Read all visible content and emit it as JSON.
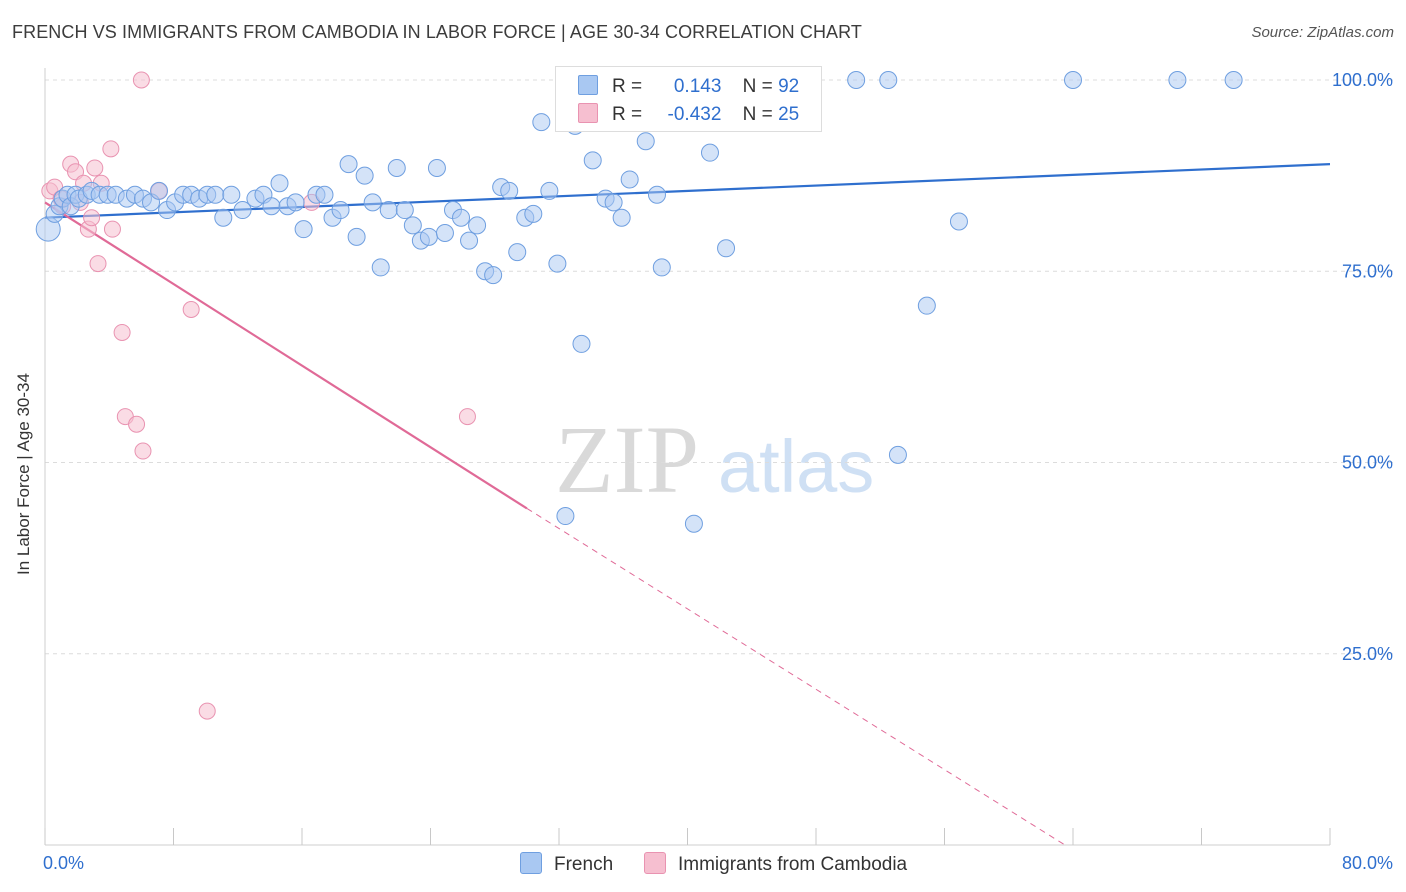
{
  "header": {
    "title": "FRENCH VS IMMIGRANTS FROM CAMBODIA IN LABOR FORCE | AGE 30-34 CORRELATION CHART",
    "source": "Source: ZipAtlas.com"
  },
  "watermark": {
    "zip": "ZIP",
    "atlas": "atlas"
  },
  "legend": {
    "french": {
      "r_label": "R =",
      "r_value": "0.143",
      "n_label": "N =",
      "n_value": "92"
    },
    "cambodia": {
      "r_label": "R =",
      "r_value": "-0.432",
      "n_label": "N =",
      "n_value": "25"
    }
  },
  "colors": {
    "french_fill": "#a9c8f2",
    "french_stroke": "#6f9fe0",
    "french_line": "#2f6fce",
    "cambodia_fill": "#f6bfd0",
    "cambodia_stroke": "#e993b1",
    "cambodia_line": "#e06a97",
    "axis_text": "#2f6fce",
    "grid": "#dcdcdc"
  },
  "chart_data": {
    "type": "scatter",
    "title": "FRENCH VS IMMIGRANTS FROM CAMBODIA IN LABOR FORCE | AGE 30-34 CORRELATION CHART",
    "xlabel": "",
    "ylabel": "In Labor Force | Age 30-34",
    "xlim": [
      0,
      80
    ],
    "ylim": [
      0,
      100
    ],
    "x_tick_labels": [
      "0.0%",
      "80.0%"
    ],
    "y_tick_labels": [
      "25.0%",
      "50.0%",
      "75.0%",
      "100.0%"
    ],
    "y_ticks": [
      25,
      50,
      75,
      100
    ],
    "grid": true,
    "legend_placement": "top-center",
    "series": [
      {
        "name": "French",
        "points": [
          [
            0.2,
            80.5
          ],
          [
            0.6,
            82.5
          ],
          [
            0.9,
            83.5
          ],
          [
            1.1,
            84.5
          ],
          [
            1.4,
            85.0
          ],
          [
            1.6,
            83.5
          ],
          [
            1.9,
            85.0
          ],
          [
            2.1,
            84.5
          ],
          [
            2.6,
            85.0
          ],
          [
            2.9,
            85.5
          ],
          [
            3.4,
            85.0
          ],
          [
            3.9,
            85.0
          ],
          [
            4.4,
            85.0
          ],
          [
            5.1,
            84.5
          ],
          [
            5.6,
            85.0
          ],
          [
            6.1,
            84.5
          ],
          [
            6.6,
            84.0
          ],
          [
            7.1,
            85.5
          ],
          [
            7.6,
            83.0
          ],
          [
            8.1,
            84.0
          ],
          [
            8.6,
            85.0
          ],
          [
            9.1,
            85.0
          ],
          [
            9.6,
            84.5
          ],
          [
            10.1,
            85.0
          ],
          [
            10.6,
            85.0
          ],
          [
            11.1,
            82.0
          ],
          [
            11.6,
            85.0
          ],
          [
            12.3,
            83.0
          ],
          [
            13.1,
            84.5
          ],
          [
            13.6,
            85.0
          ],
          [
            14.1,
            83.5
          ],
          [
            14.6,
            86.5
          ],
          [
            15.1,
            83.5
          ],
          [
            15.6,
            84.0
          ],
          [
            16.1,
            80.5
          ],
          [
            16.9,
            85.0
          ],
          [
            17.4,
            85.0
          ],
          [
            17.9,
            82.0
          ],
          [
            18.4,
            83.0
          ],
          [
            18.9,
            89.0
          ],
          [
            19.4,
            79.5
          ],
          [
            19.9,
            87.5
          ],
          [
            20.4,
            84.0
          ],
          [
            20.9,
            75.5
          ],
          [
            21.4,
            83.0
          ],
          [
            21.9,
            88.5
          ],
          [
            22.4,
            83.0
          ],
          [
            22.9,
            81.0
          ],
          [
            23.4,
            79.0
          ],
          [
            23.9,
            79.5
          ],
          [
            24.4,
            88.5
          ],
          [
            24.9,
            80.0
          ],
          [
            25.4,
            83.0
          ],
          [
            25.9,
            82.0
          ],
          [
            26.4,
            79.0
          ],
          [
            26.9,
            81.0
          ],
          [
            27.4,
            75.0
          ],
          [
            27.9,
            74.5
          ],
          [
            28.4,
            86.0
          ],
          [
            28.9,
            85.5
          ],
          [
            29.4,
            77.5
          ],
          [
            29.9,
            82.0
          ],
          [
            30.4,
            82.5
          ],
          [
            30.9,
            94.5
          ],
          [
            31.4,
            85.5
          ],
          [
            31.9,
            76.0
          ],
          [
            32.4,
            43.0
          ],
          [
            33.0,
            94.0
          ],
          [
            33.4,
            65.5
          ],
          [
            34.1,
            89.5
          ],
          [
            34.9,
            84.5
          ],
          [
            35.4,
            84.0
          ],
          [
            35.9,
            82.0
          ],
          [
            36.4,
            87.0
          ],
          [
            37.4,
            92.0
          ],
          [
            38.1,
            85.0
          ],
          [
            38.4,
            75.5
          ],
          [
            40.4,
            42.0
          ],
          [
            41.4,
            90.5
          ],
          [
            42.4,
            78.0
          ],
          [
            53.1,
            51.0
          ],
          [
            54.9,
            70.5
          ],
          [
            56.9,
            81.5
          ],
          [
            37.0,
            100.0
          ],
          [
            45.0,
            100.0
          ],
          [
            50.5,
            100.0
          ],
          [
            52.5,
            100.0
          ],
          [
            64.0,
            100.0
          ],
          [
            70.5,
            100.0
          ],
          [
            74.0,
            100.0
          ],
          [
            35.1,
            100.0
          ],
          [
            37.9,
            100.0
          ]
        ]
      },
      {
        "name": "Immigrants from Cambodia",
        "points": [
          [
            0.3,
            85.5
          ],
          [
            0.6,
            86.0
          ],
          [
            1.1,
            83.5
          ],
          [
            1.6,
            89.0
          ],
          [
            1.9,
            88.0
          ],
          [
            2.2,
            84.0
          ],
          [
            2.4,
            86.5
          ],
          [
            2.7,
            80.5
          ],
          [
            2.9,
            82.0
          ],
          [
            3.1,
            88.5
          ],
          [
            3.5,
            86.5
          ],
          [
            4.1,
            91.0
          ],
          [
            3.3,
            76.0
          ],
          [
            4.2,
            80.5
          ],
          [
            4.8,
            67.0
          ],
          [
            5.0,
            56.0
          ],
          [
            5.7,
            55.0
          ],
          [
            6.1,
            51.5
          ],
          [
            7.1,
            85.5
          ],
          [
            9.1,
            70.0
          ],
          [
            10.1,
            17.5
          ],
          [
            26.3,
            56.0
          ],
          [
            16.6,
            84.0
          ],
          [
            1.0,
            84.5
          ],
          [
            6.0,
            100.0
          ]
        ]
      }
    ],
    "trend_lines": [
      {
        "series": "French",
        "start": [
          0,
          82.0
        ],
        "end": [
          80,
          89.0
        ],
        "style": "solid"
      },
      {
        "series": "Immigrants from Cambodia",
        "start": [
          0,
          84.0
        ],
        "end": [
          30.0,
          44.0
        ],
        "style": "solid"
      },
      {
        "series": "Immigrants from Cambodia",
        "start": [
          30.0,
          44.0
        ],
        "end": [
          63.5,
          0.0
        ],
        "style": "dashed"
      }
    ]
  }
}
